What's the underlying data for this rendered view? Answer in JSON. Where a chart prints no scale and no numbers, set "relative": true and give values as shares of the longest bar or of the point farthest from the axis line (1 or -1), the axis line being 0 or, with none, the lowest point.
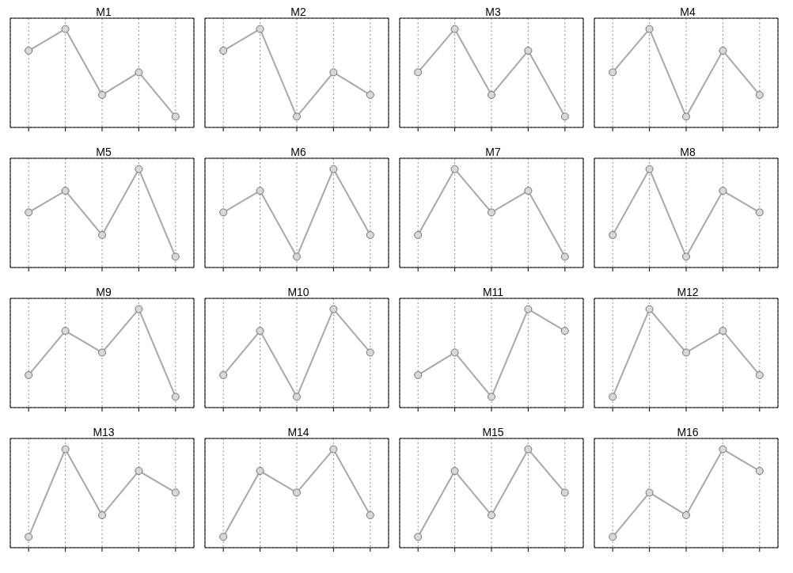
{
  "chart_data": [
    {
      "type": "line",
      "title": "M1",
      "categories": [
        null,
        null,
        null,
        null,
        null
      ],
      "values": [
        0.78,
        1,
        0.33,
        0.56,
        0.11
      ],
      "color": "#a8a8a8",
      "relative": true,
      "grid": true,
      "marker": "circle"
    },
    {
      "type": "line",
      "title": "M2",
      "categories": [
        null,
        null,
        null,
        null,
        null
      ],
      "values": [
        0.78,
        1,
        0.11,
        0.56,
        0.33
      ],
      "color": "#a8a8a8",
      "relative": true,
      "grid": true,
      "marker": "circle"
    },
    {
      "type": "line",
      "title": "M3",
      "categories": [
        null,
        null,
        null,
        null,
        null
      ],
      "values": [
        0.56,
        1,
        0.33,
        0.78,
        0.11
      ],
      "color": "#a8a8a8",
      "relative": true,
      "grid": true,
      "marker": "circle"
    },
    {
      "type": "line",
      "title": "M4",
      "categories": [
        null,
        null,
        null,
        null,
        null
      ],
      "values": [
        0.56,
        1,
        0.11,
        0.78,
        0.33
      ],
      "color": "#a8a8a8",
      "relative": true,
      "grid": true,
      "marker": "circle"
    },
    {
      "type": "line",
      "title": "M5",
      "categories": [
        null,
        null,
        null,
        null,
        null
      ],
      "values": [
        0.56,
        0.78,
        0.33,
        1,
        0.11
      ],
      "color": "#a8a8a8",
      "relative": true,
      "grid": true,
      "marker": "circle"
    },
    {
      "type": "line",
      "title": "M6",
      "categories": [
        null,
        null,
        null,
        null,
        null
      ],
      "values": [
        0.56,
        0.78,
        0.11,
        1,
        0.33
      ],
      "color": "#a8a8a8",
      "relative": true,
      "grid": true,
      "marker": "circle"
    },
    {
      "type": "line",
      "title": "M7",
      "categories": [
        null,
        null,
        null,
        null,
        null
      ],
      "values": [
        0.33,
        1,
        0.56,
        0.78,
        0.11
      ],
      "color": "#a8a8a8",
      "relative": true,
      "grid": true,
      "marker": "circle"
    },
    {
      "type": "line",
      "title": "M8",
      "categories": [
        null,
        null,
        null,
        null,
        null
      ],
      "values": [
        0.33,
        1,
        0.11,
        0.78,
        0.56
      ],
      "color": "#a8a8a8",
      "relative": true,
      "grid": true,
      "marker": "circle"
    },
    {
      "type": "line",
      "title": "M9",
      "categories": [
        null,
        null,
        null,
        null,
        null
      ],
      "values": [
        0.33,
        0.78,
        0.56,
        1,
        0.11
      ],
      "color": "#a8a8a8",
      "relative": true,
      "grid": true,
      "marker": "circle"
    },
    {
      "type": "line",
      "title": "M10",
      "categories": [
        null,
        null,
        null,
        null,
        null
      ],
      "values": [
        0.33,
        0.78,
        0.11,
        1,
        0.56
      ],
      "color": "#a8a8a8",
      "relative": true,
      "grid": true,
      "marker": "circle"
    },
    {
      "type": "line",
      "title": "M11",
      "categories": [
        null,
        null,
        null,
        null,
        null
      ],
      "values": [
        0.33,
        0.56,
        0.11,
        1,
        0.78
      ],
      "color": "#a8a8a8",
      "relative": true,
      "grid": true,
      "marker": "circle"
    },
    {
      "type": "line",
      "title": "M12",
      "categories": [
        null,
        null,
        null,
        null,
        null
      ],
      "values": [
        0.11,
        1,
        0.56,
        0.78,
        0.33
      ],
      "color": "#a8a8a8",
      "relative": true,
      "grid": true,
      "marker": "circle"
    },
    {
      "type": "line",
      "title": "M13",
      "categories": [
        null,
        null,
        null,
        null,
        null
      ],
      "values": [
        0.11,
        1,
        0.33,
        0.78,
        0.56
      ],
      "color": "#a8a8a8",
      "relative": true,
      "grid": true,
      "marker": "circle"
    },
    {
      "type": "line",
      "title": "M14",
      "categories": [
        null,
        null,
        null,
        null,
        null
      ],
      "values": [
        0.11,
        0.78,
        0.56,
        1,
        0.33
      ],
      "color": "#a8a8a8",
      "relative": true,
      "grid": true,
      "marker": "circle"
    },
    {
      "type": "line",
      "title": "M15",
      "categories": [
        null,
        null,
        null,
        null,
        null
      ],
      "values": [
        0.11,
        0.78,
        0.33,
        1,
        0.56
      ],
      "color": "#a8a8a8",
      "relative": true,
      "grid": true,
      "marker": "circle"
    },
    {
      "type": "line",
      "title": "M16",
      "categories": [
        null,
        null,
        null,
        null,
        null
      ],
      "values": [
        0.11,
        0.56,
        0.33,
        1,
        0.78
      ],
      "color": "#a8a8a8",
      "relative": true,
      "grid": true,
      "marker": "circle"
    }
  ]
}
